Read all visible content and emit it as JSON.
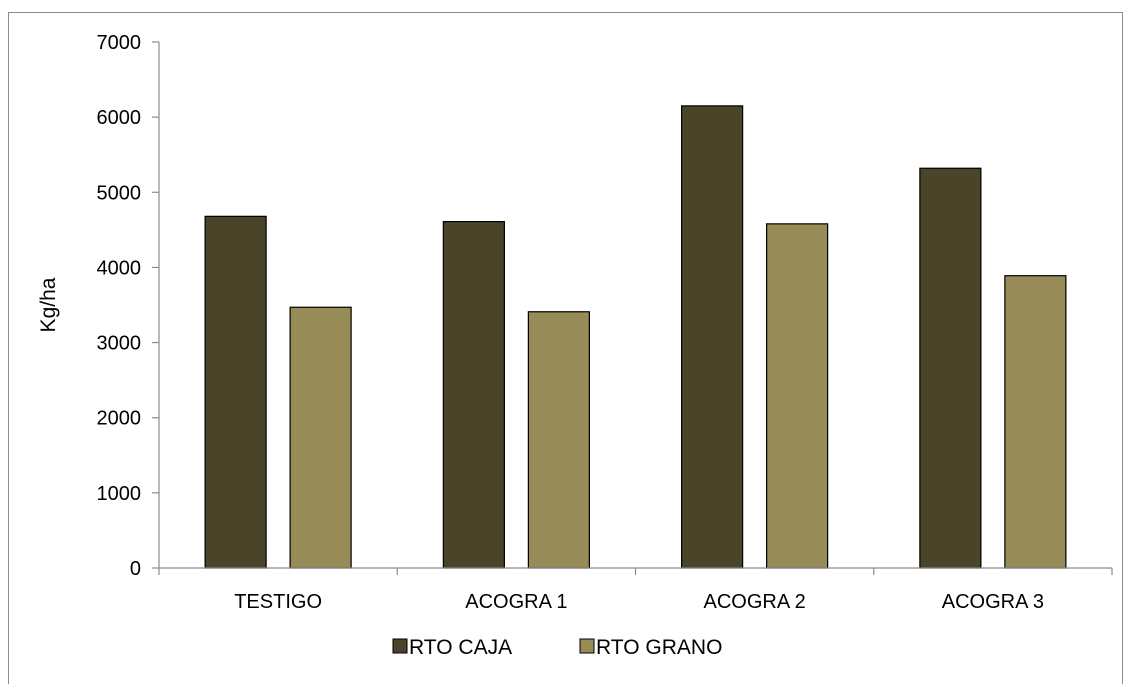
{
  "chart_data": {
    "type": "bar",
    "title": "",
    "xlabel": "",
    "ylabel": "Kg/ha",
    "ylim": [
      0,
      7000
    ],
    "yticks": [
      0,
      1000,
      2000,
      3000,
      4000,
      5000,
      6000,
      7000
    ],
    "categories": [
      "TESTIGO",
      "ACOGRA 1",
      "ACOGRA 2",
      "ACOGRA 3"
    ],
    "series": [
      {
        "name": "RTO CAJA",
        "color": "#4a4429",
        "values": [
          4680,
          4610,
          6150,
          5320
        ]
      },
      {
        "name": "RTO GRANO",
        "color": "#978c57",
        "values": [
          3470,
          3410,
          4580,
          3890
        ]
      }
    ],
    "legend_position": "bottom",
    "grid": false
  }
}
